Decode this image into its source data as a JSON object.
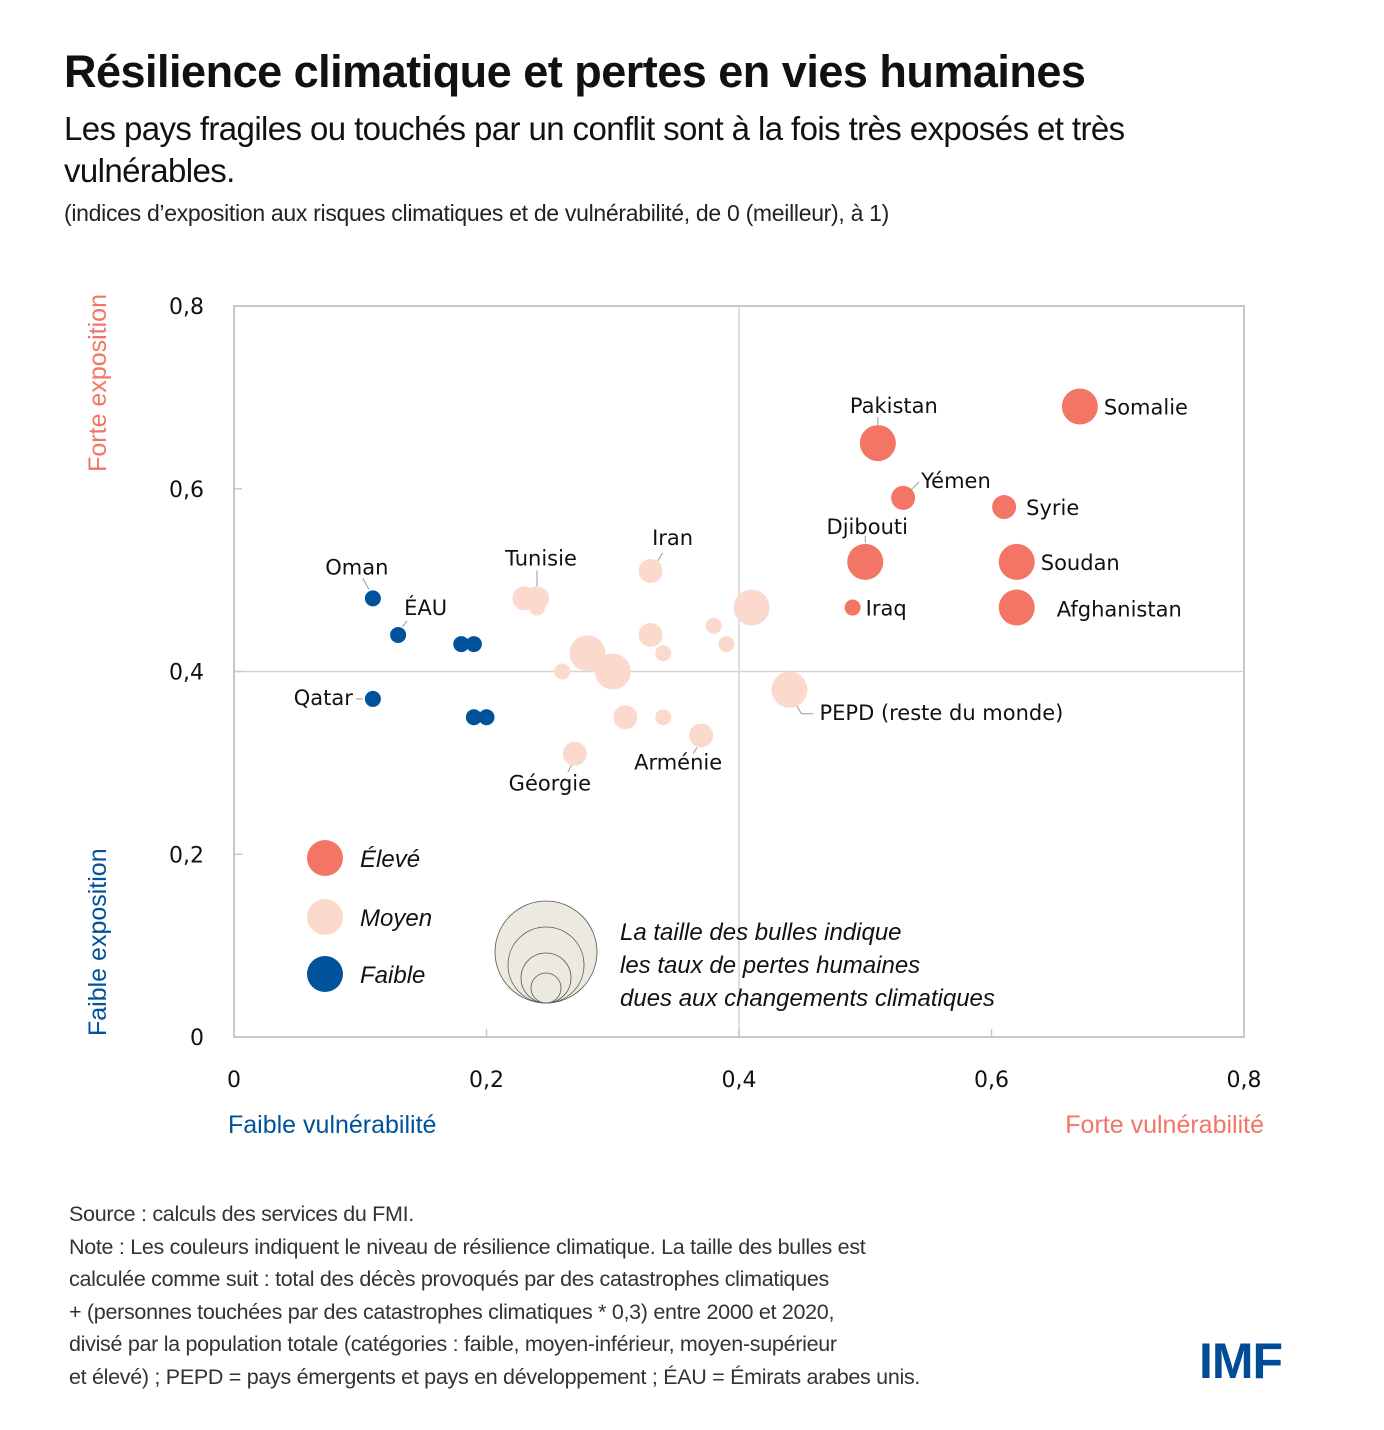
{
  "header": {
    "title": "Résilience climatique et pertes en vies humaines",
    "subtitle": "Les pays fragiles ou touchés par un conflit sont à la fois très exposés et très vulnérables.",
    "units": "(indices d’exposition aux risques climatiques et de vulnérabilité, de 0 (meilleur), à 1)"
  },
  "colors": {
    "eleve": "#f37565",
    "moyen": "#fcd9cd",
    "faible": "#00529b",
    "axis_high": "#f37565",
    "axis_low": "#00529b",
    "logo": "#004c97",
    "size_legend_fill": "#ece9e0"
  },
  "chart_data": {
    "type": "scatter",
    "title": "Résilience climatique et pertes en vies humaines",
    "xlabel_low": "Faible vulnérabilité",
    "xlabel_high": "Forte vulnérabilité",
    "ylabel_low": "Faible exposition",
    "ylabel_high": "Forte exposition",
    "xlim": [
      0,
      0.8
    ],
    "ylim": [
      0,
      0.8
    ],
    "x_ticks": [
      "0",
      "0,2",
      "0,4",
      "0,6",
      "0,8"
    ],
    "y_ticks": [
      "0",
      "0,2",
      "0,4",
      "0,6",
      "0,8"
    ],
    "x_tick_values": [
      0,
      0.2,
      0.4,
      0.6,
      0.8
    ],
    "y_tick_values": [
      0,
      0.2,
      0.4,
      0.6,
      0.8
    ],
    "reference_lines": {
      "x": 0.4,
      "y": 0.4
    },
    "size_note": "relative bubble size class 1 (smallest) to 4 (largest)",
    "legend": {
      "position": "bottom-left",
      "items": [
        {
          "key": "eleve",
          "label": "Élevé"
        },
        {
          "key": "moyen",
          "label": "Moyen"
        },
        {
          "key": "faible",
          "label": "Faible"
        }
      ],
      "size_text": [
        "La taille des bulles indique",
        "les taux de pertes humaines",
        "dues aux changements climatiques"
      ]
    },
    "series": [
      {
        "name": "Élevé",
        "key": "eleve",
        "points": [
          {
            "label": "Somalie",
            "x": 0.67,
            "y": 0.69,
            "size": 3
          },
          {
            "label": "Pakistan",
            "x": 0.51,
            "y": 0.65,
            "size": 3
          },
          {
            "label": "Yémen",
            "x": 0.53,
            "y": 0.59,
            "size": 2
          },
          {
            "label": "Syrie",
            "x": 0.61,
            "y": 0.58,
            "size": 2
          },
          {
            "label": "Djibouti",
            "x": 0.5,
            "y": 0.52,
            "size": 3
          },
          {
            "label": "Soudan",
            "x": 0.62,
            "y": 0.52,
            "size": 3
          },
          {
            "label": "Afghanistan",
            "x": 0.62,
            "y": 0.47,
            "size": 3
          },
          {
            "label": "Iraq",
            "x": 0.49,
            "y": 0.47,
            "size": 1
          }
        ]
      },
      {
        "name": "Moyen",
        "key": "moyen",
        "points": [
          {
            "label": "",
            "x": 0.23,
            "y": 0.48,
            "size": 2
          },
          {
            "label": "Tunisie",
            "x": 0.24,
            "y": 0.48,
            "size": 2
          },
          {
            "label": "",
            "x": 0.24,
            "y": 0.47,
            "size": 1
          },
          {
            "label": "Iran",
            "x": 0.33,
            "y": 0.51,
            "size": 2
          },
          {
            "label": "",
            "x": 0.41,
            "y": 0.47,
            "size": 3
          },
          {
            "label": "",
            "x": 0.38,
            "y": 0.45,
            "size": 1
          },
          {
            "label": "",
            "x": 0.39,
            "y": 0.43,
            "size": 1
          },
          {
            "label": "",
            "x": 0.33,
            "y": 0.44,
            "size": 2
          },
          {
            "label": "",
            "x": 0.34,
            "y": 0.42,
            "size": 1
          },
          {
            "label": "",
            "x": 0.28,
            "y": 0.42,
            "size": 3
          },
          {
            "label": "",
            "x": 0.3,
            "y": 0.4,
            "size": 3
          },
          {
            "label": "",
            "x": 0.26,
            "y": 0.4,
            "size": 1
          },
          {
            "label": "PEPD (reste du monde)",
            "x": 0.44,
            "y": 0.38,
            "size": 3
          },
          {
            "label": "",
            "x": 0.31,
            "y": 0.35,
            "size": 2
          },
          {
            "label": "",
            "x": 0.34,
            "y": 0.35,
            "size": 1
          },
          {
            "label": "Arménie",
            "x": 0.37,
            "y": 0.33,
            "size": 2
          },
          {
            "label": "Géorgie",
            "x": 0.27,
            "y": 0.31,
            "size": 2
          }
        ]
      },
      {
        "name": "Faible",
        "key": "faible",
        "points": [
          {
            "label": "Oman",
            "x": 0.11,
            "y": 0.48,
            "size": 1
          },
          {
            "label": "ÉAU",
            "x": 0.13,
            "y": 0.44,
            "size": 1
          },
          {
            "label": "",
            "x": 0.18,
            "y": 0.43,
            "size": 1
          },
          {
            "label": "",
            "x": 0.19,
            "y": 0.43,
            "size": 1
          },
          {
            "label": "Qatar",
            "x": 0.11,
            "y": 0.37,
            "size": 1
          },
          {
            "label": "",
            "x": 0.19,
            "y": 0.35,
            "size": 1
          },
          {
            "label": "",
            "x": 0.2,
            "y": 0.35,
            "size": 1
          }
        ]
      }
    ]
  },
  "footer": {
    "source": "Source : calculs des services du FMI.",
    "note_lines": [
      "Note : Les couleurs indiquent le niveau de résilience climatique. La taille des bulles est",
      "calculée comme suit : total des décès provoqués par des catastrophes climatiques",
      "+ (personnes touchées par des catastrophes climatiques * 0,3) entre 2000 et 2020,",
      "divisé par la population totale (catégories : faible, moyen-inférieur, moyen-supérieur",
      "et élevé) ; PEPD = pays émergents et pays en développement ; ÉAU = Émirats arabes unis."
    ],
    "logo": "IMF"
  }
}
